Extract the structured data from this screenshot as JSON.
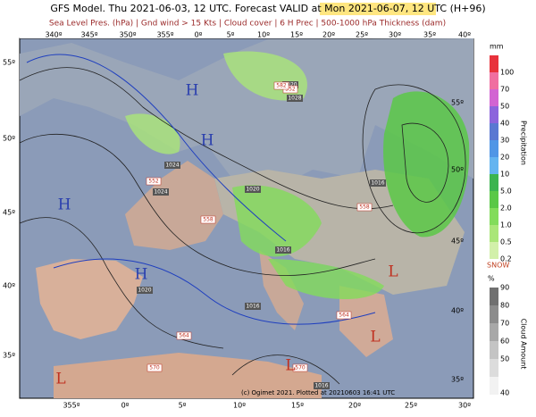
{
  "header": {
    "title_prefix": "GFS Model. Thu 2021-06-03, 12 UTC. Forecast VALID at ",
    "title_valid": "Mon 2021-06-07, 12 UTC",
    "title_suffix": " (H+96)",
    "subtitle": "Sea Level Pres. (hPa) | Gnd wind > 15 Kts | Cloud cover | 6 H Prec | 500-1000 hPa Thickness (dam)"
  },
  "map": {
    "top_longitudes": [
      "340º",
      "345º",
      "350º",
      "355º",
      "0º",
      "5º",
      "10º",
      "15º",
      "20º",
      "25º",
      "30º",
      "35º",
      "40º"
    ],
    "bottom_longitudes": [
      "355º",
      "0º",
      "5º",
      "10º",
      "15º",
      "20º",
      "25º",
      "30º"
    ],
    "left_latitudes": [
      "55º",
      "50º",
      "45º",
      "40º",
      "35º"
    ],
    "right_latitudes": [
      "55º",
      "50º",
      "45º",
      "40º",
      "35º"
    ],
    "pressure_labels": [
      "1024",
      "1024",
      "1028",
      "1020",
      "1020",
      "1016",
      "1016",
      "1016",
      "1020",
      "1016"
    ],
    "thickness_labels": [
      "552",
      "552",
      "558",
      "558",
      "564",
      "564",
      "570",
      "570",
      "582"
    ],
    "centers": [
      "H",
      "H",
      "H",
      "H",
      "L",
      "L",
      "L",
      "L"
    ],
    "footer": "(c) Ogimet 2021. Plotted at 20210603 16:41 UTC"
  },
  "legend": {
    "precip_unit": "mm",
    "precip_title": "Precipitation",
    "precip": [
      {
        "label": "100",
        "color": "#e8323c"
      },
      {
        "label": "70",
        "color": "#f06ea0"
      },
      {
        "label": "50",
        "color": "#d264d2"
      },
      {
        "label": "40",
        "color": "#8c64dc"
      },
      {
        "label": "30",
        "color": "#5a78d2"
      },
      {
        "label": "20",
        "color": "#5096e6"
      },
      {
        "label": "10",
        "color": "#64b4f0"
      },
      {
        "label": "5.0",
        "color": "#3cb450"
      },
      {
        "label": "2.0",
        "color": "#5ac846"
      },
      {
        "label": "1.0",
        "color": "#82dc5a"
      },
      {
        "label": "0.5",
        "color": "#aae678"
      },
      {
        "label": "0.2",
        "color": "#d2f0aa"
      }
    ],
    "snow": "SNOW",
    "cloud_unit": "%",
    "cloud_title": "Cloud Amount",
    "cloud": [
      {
        "label": "90",
        "color": "#707070"
      },
      {
        "label": "80",
        "color": "#8c8c8c"
      },
      {
        "label": "70",
        "color": "#a8a8a8"
      },
      {
        "label": "60",
        "color": "#c4c4c4"
      },
      {
        "label": "50",
        "color": "#dcdcdc"
      },
      {
        "label": "40",
        "color": "#f2f2f2"
      }
    ]
  }
}
